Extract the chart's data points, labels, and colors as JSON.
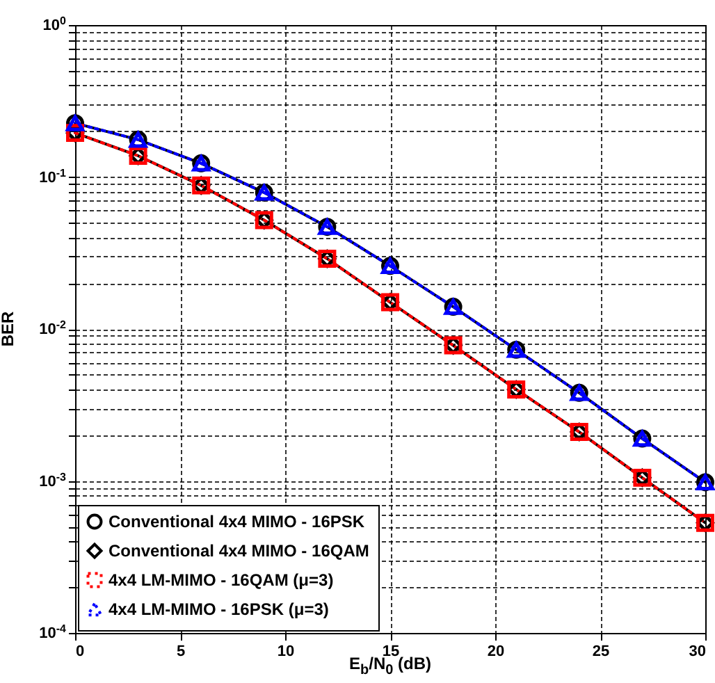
{
  "chart_data": {
    "type": "line",
    "xlabel": "E$_{b}$/N$_{0}$ (dB)",
    "ylabel": "BER",
    "log": true,
    "grid": true,
    "legend": "bottom left",
    "x": [
      0,
      3,
      6,
      9,
      12,
      15,
      18,
      21,
      24,
      27,
      30
    ],
    "xlim": [
      0,
      30
    ],
    "xticks": [
      0,
      5,
      10,
      15,
      20,
      25,
      30
    ],
    "ylim": [
      0.0001,
      1
    ],
    "yticks": [
      {
        "value": 0.0001,
        "label": "10$^{-4}$"
      },
      {
        "value": 0.0002,
        "label": null
      },
      {
        "value": 0.0003,
        "label": null
      },
      {
        "value": 0.0004,
        "label": null
      },
      {
        "value": 0.0005,
        "label": null
      },
      {
        "value": 0.0006,
        "label": null
      },
      {
        "value": 0.0007,
        "label": null
      },
      {
        "value": 0.0008,
        "label": null
      },
      {
        "value": 0.0009,
        "label": null
      },
      {
        "value": 0.001,
        "label": "10$^{-3}$"
      },
      {
        "value": 0.002,
        "label": null
      },
      {
        "value": 0.003,
        "label": null
      },
      {
        "value": 0.004,
        "label": null
      },
      {
        "value": 0.005,
        "label": null
      },
      {
        "value": 0.006,
        "label": null
      },
      {
        "value": 0.007,
        "label": null
      },
      {
        "value": 0.008,
        "label": null
      },
      {
        "value": 0.009,
        "label": null
      },
      {
        "value": 0.01,
        "label": "10$^{-2}$"
      },
      {
        "value": 0.02,
        "label": null
      },
      {
        "value": 0.03,
        "label": null
      },
      {
        "value": 0.04,
        "label": null
      },
      {
        "value": 0.05,
        "label": null
      },
      {
        "value": 0.06,
        "label": null
      },
      {
        "value": 0.07,
        "label": null
      },
      {
        "value": 0.08,
        "label": null
      },
      {
        "value": 0.09,
        "label": null
      },
      {
        "value": 0.1,
        "label": "10$^{-1}$"
      },
      {
        "value": 0.2,
        "label": null
      },
      {
        "value": 0.3,
        "label": null
      },
      {
        "value": 0.4,
        "label": null
      },
      {
        "value": 0.5,
        "label": null
      },
      {
        "value": 0.6,
        "label": null
      },
      {
        "value": 0.7,
        "label": null
      },
      {
        "value": 0.8,
        "label": null
      },
      {
        "value": 0.9,
        "label": null
      },
      {
        "value": 1,
        "label": "10$^{0}$"
      }
    ],
    "series": [
      {
        "name": "Conventional 4x4 MIMO - 16PSK",
        "color": "#000000",
        "marker": "circle",
        "line_style": "solid",
        "values": [
          0.226,
          0.176,
          0.123,
          0.079,
          0.047,
          0.026,
          0.014,
          0.0073,
          0.0038,
          0.0019,
          0.00098
        ]
      },
      {
        "name": "Conventional 4x4 MIMO - 16QAM",
        "color": "#000000",
        "marker": "diamond",
        "line_style": "solid",
        "values": [
          0.195,
          0.138,
          0.088,
          0.052,
          0.029,
          0.015,
          0.0078,
          0.004,
          0.0021,
          0.00105,
          0.00053
        ]
      },
      {
        "name": "4x4 LM-MIMO - 16QAM (μ=3)",
        "color": "#ff0000",
        "marker": "square",
        "line_style": "dotted",
        "values": [
          0.195,
          0.138,
          0.088,
          0.052,
          0.029,
          0.015,
          0.0078,
          0.004,
          0.0021,
          0.00105,
          0.00053
        ]
      },
      {
        "name": "4x4 LM-MIMO - 16PSK (μ=3)",
        "color": "#0000ff",
        "marker": "triangle",
        "line_style": "dotted",
        "values": [
          0.226,
          0.176,
          0.123,
          0.079,
          0.047,
          0.026,
          0.014,
          0.0073,
          0.0038,
          0.0019,
          0.00098
        ]
      }
    ]
  }
}
